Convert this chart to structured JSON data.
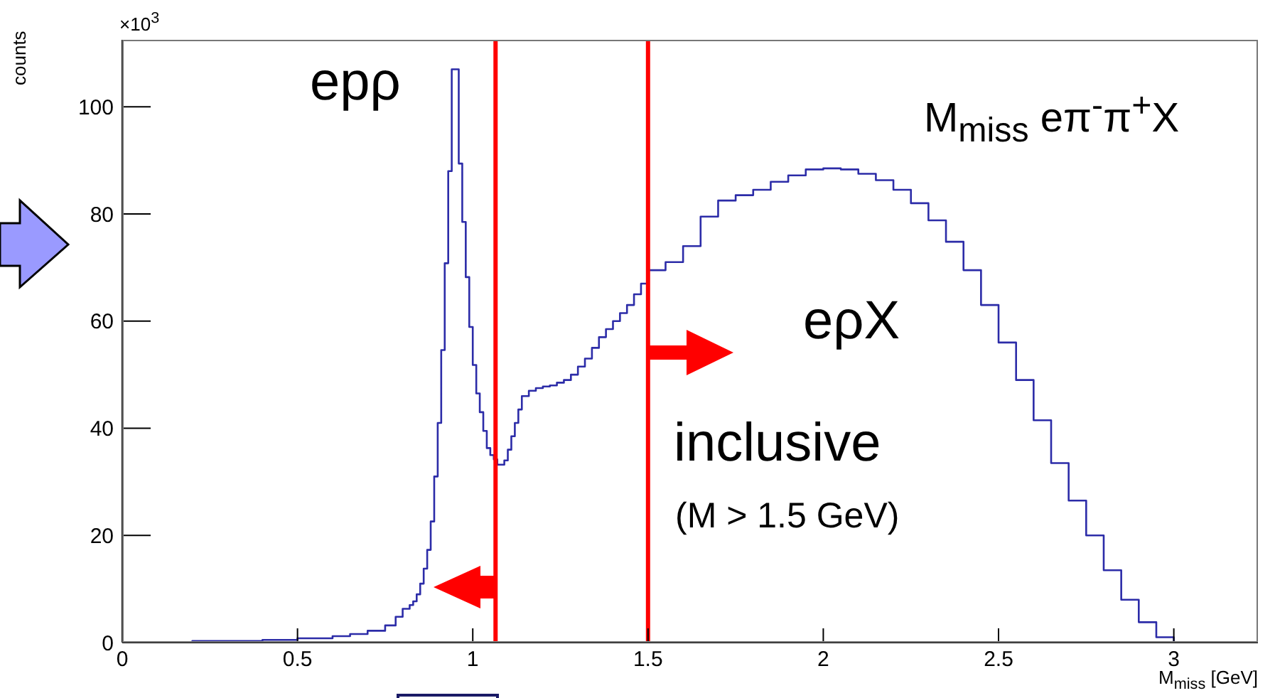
{
  "chart_data": {
    "type": "histogram",
    "xlabel": "M$_{miss}$ [GeV]",
    "ylabel": "counts",
    "annotations": [
      "×10$^{3}$",
      "epρ",
      "eρX",
      "inclusive",
      "(M > 1.5 GeV)",
      "M$_{miss}$ eπ$^{-}$π$^{+}$X"
    ],
    "bins": [
      0,
      0.2,
      0.4,
      0.5,
      0.6,
      0.65,
      0.7,
      0.75,
      0.78,
      0.8,
      0.82,
      0.83,
      0.84,
      0.85,
      0.86,
      0.87,
      0.88,
      0.89,
      0.9,
      0.91,
      0.92,
      0.93,
      0.94,
      0.95,
      0.96,
      0.97,
      0.98,
      0.99,
      1.0,
      1.01,
      1.02,
      1.03,
      1.04,
      1.05,
      1.06,
      1.07,
      1.08,
      1.09,
      1.1,
      1.11,
      1.12,
      1.13,
      1.14,
      1.16,
      1.18,
      1.2,
      1.22,
      1.24,
      1.26,
      1.28,
      1.3,
      1.32,
      1.34,
      1.36,
      1.38,
      1.4,
      1.42,
      1.44,
      1.46,
      1.48,
      1.5,
      1.55,
      1.6,
      1.65,
      1.7,
      1.75,
      1.8,
      1.85,
      1.9,
      1.95,
      2.0,
      2.05,
      2.1,
      2.15,
      2.2,
      2.25,
      2.3,
      2.35,
      2.4,
      2.45,
      2.5,
      2.55,
      2.6,
      2.65,
      2.7,
      2.75,
      2.8,
      2.85,
      2.9,
      2.95,
      3.0,
      3.24
    ],
    "values": [
      0.1,
      0.3,
      0.5,
      0.8,
      1.2,
      1.6,
      2.2,
      3.2,
      4.8,
      6.3,
      7,
      7.7,
      9,
      11,
      13.8,
      17.3,
      22.6,
      31,
      41,
      54.6,
      70.8,
      88,
      107,
      107,
      89.4,
      78.5,
      68.2,
      58.9,
      51.8,
      46.5,
      43,
      39.5,
      36.3,
      35,
      34.2,
      33.2,
      33.2,
      34,
      36,
      38.5,
      41,
      43.5,
      46,
      47,
      47.5,
      47.8,
      48,
      48.5,
      49,
      50,
      51.5,
      53,
      55,
      57,
      58.5,
      60,
      61.5,
      63,
      65,
      67,
      69.5,
      71,
      74,
      79.5,
      82.5,
      83.5,
      84.5,
      86,
      87.2,
      88.3,
      88.5,
      88.3,
      87.5,
      86.3,
      84.5,
      82,
      78.8,
      74.8,
      69.5,
      63,
      56,
      49,
      41.5,
      33.5,
      26.5,
      20,
      13.5,
      8,
      3.8,
      1,
      0
    ],
    "color": "#2c2ca8",
    "xlim": [
      0,
      3.24
    ],
    "xticks": [
      0,
      0.5,
      1,
      1.5,
      2,
      2.5,
      3
    ],
    "ylim": [
      0,
      112.5
    ],
    "yticks": [
      0,
      20,
      40,
      60,
      80,
      100
    ],
    "ref_lines": [
      {
        "axis": "x",
        "value": 1.065,
        "color": "#ff0000"
      },
      {
        "axis": "x",
        "value": 1.5,
        "color": "#ff0000"
      }
    ]
  }
}
